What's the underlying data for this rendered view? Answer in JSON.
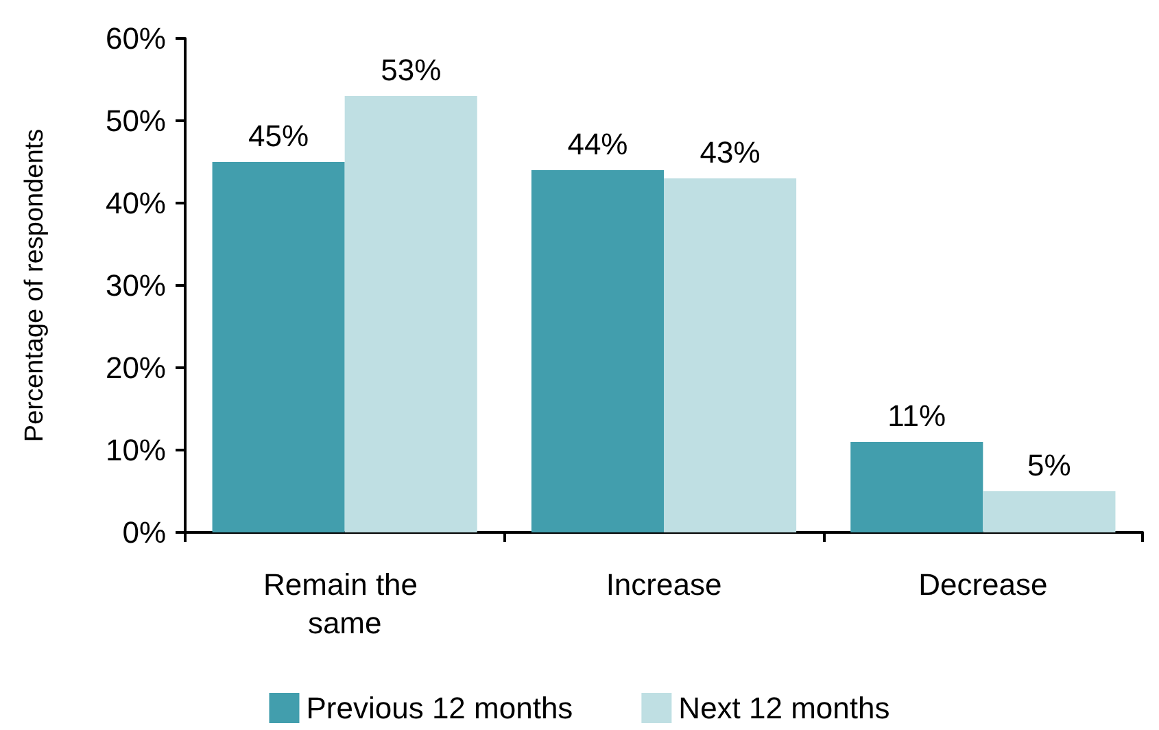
{
  "chart_data": {
    "type": "bar",
    "ylabel": "Percentage of respondents",
    "categories": [
      "Remain the same",
      "Increase",
      "Decrease"
    ],
    "series": [
      {
        "name": "Previous 12 months",
        "color": "#429ead",
        "values": [
          45,
          44,
          11
        ],
        "value_labels": [
          "45%",
          "44%",
          "11%"
        ]
      },
      {
        "name": "Next 12 months",
        "color": "#bfdfe3",
        "values": [
          53,
          43,
          5
        ],
        "value_labels": [
          "53%",
          "43%",
          "5%"
        ]
      }
    ],
    "ylim": [
      0,
      60
    ],
    "yticks": [
      {
        "value": 0,
        "label": "0%"
      },
      {
        "value": 10,
        "label": "10%"
      },
      {
        "value": 20,
        "label": "20%"
      },
      {
        "value": 30,
        "label": "30%"
      },
      {
        "value": 40,
        "label": "40%"
      },
      {
        "value": 50,
        "label": "50%"
      },
      {
        "value": 60,
        "label": "60%"
      }
    ],
    "grid": false,
    "legend": "bottom"
  }
}
